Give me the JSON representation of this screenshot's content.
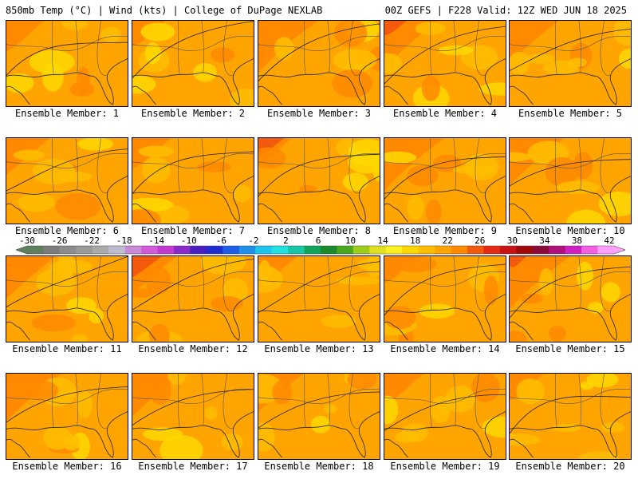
{
  "header": {
    "left": "850mb Temp (°C) | Wind (kts) | College of DuPage NEXLAB",
    "right": "00Z GEFS | F228 Valid: 12Z WED JUN 18 2025"
  },
  "colorbar": {
    "labels": [
      "-30",
      "-26",
      "-22",
      "-18",
      "-14",
      "-10",
      "-6",
      "-2",
      "2",
      "6",
      "10",
      "14",
      "18",
      "22",
      "26",
      "30",
      "34",
      "38",
      "42"
    ],
    "colors": [
      "#5f7f5f",
      "#7c7c7c",
      "#8c8c8c",
      "#9a9a9a",
      "#aaaaaa",
      "#bdbdcf",
      "#c98ad6",
      "#d25bd9",
      "#c43ad0",
      "#8a2ac7",
      "#4a1fc0",
      "#1f2cd0",
      "#1e5de6",
      "#1f8fea",
      "#1ec3ee",
      "#22e0e0",
      "#17c7a3",
      "#12a35a",
      "#1a8a2a",
      "#4aa81e",
      "#9fcb1a",
      "#e0e020",
      "#fff01f",
      "#ffd800",
      "#ffbe00",
      "#ffa400",
      "#ff8a00",
      "#f45a0d",
      "#e52a14",
      "#c81414",
      "#a00a0a",
      "#8a0a3a",
      "#b0107a",
      "#d01fc0",
      "#f060e0",
      "#ffa0ff"
    ]
  },
  "members": [
    {
      "caption": "Ensemble Member: 1"
    },
    {
      "caption": "Ensemble Member: 2"
    },
    {
      "caption": "Ensemble Member: 3"
    },
    {
      "caption": "Ensemble Member: 4"
    },
    {
      "caption": "Ensemble Member: 5"
    },
    {
      "caption": "Ensemble Member: 6"
    },
    {
      "caption": "Ensemble Member: 7"
    },
    {
      "caption": "Ensemble Member: 8"
    },
    {
      "caption": "Ensemble Member: 9"
    },
    {
      "caption": "Ensemble Member: 10"
    },
    {
      "caption": "Ensemble Member: 11"
    },
    {
      "caption": "Ensemble Member: 12"
    },
    {
      "caption": "Ensemble Member: 13"
    },
    {
      "caption": "Ensemble Member: 14"
    },
    {
      "caption": "Ensemble Member: 15"
    },
    {
      "caption": "Ensemble Member: 16"
    },
    {
      "caption": "Ensemble Member: 17"
    },
    {
      "caption": "Ensemble Member: 18"
    },
    {
      "caption": "Ensemble Member: 19"
    },
    {
      "caption": "Ensemble Member: 20"
    }
  ]
}
